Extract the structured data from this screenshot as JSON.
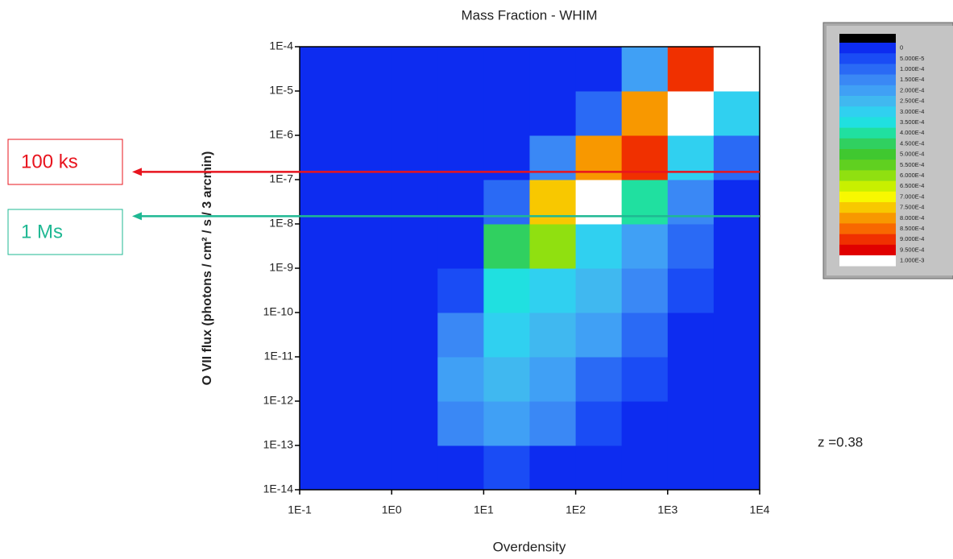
{
  "chart_data": {
    "type": "heatmap",
    "title": "Mass Fraction - WHIM",
    "xlabel": "Overdensity",
    "ylabel": "O VII flux (photons / cm² / s / 3 arcmin)",
    "xscale": "log",
    "yscale": "log",
    "xlim": [
      0.1,
      10000
    ],
    "ylim": [
      1e-14,
      0.0001
    ],
    "xticks": [
      {
        "value": 0.1,
        "label": "1E-1"
      },
      {
        "value": 1,
        "label": "1E0"
      },
      {
        "value": 10,
        "label": "1E1"
      },
      {
        "value": 100,
        "label": "1E2"
      },
      {
        "value": 1000,
        "label": "1E3"
      },
      {
        "value": 10000,
        "label": "1E4"
      }
    ],
    "yticks": [
      {
        "value": 1e-14,
        "label": "1E-14"
      },
      {
        "value": 1e-13,
        "label": "1E-13"
      },
      {
        "value": 1e-12,
        "label": "1E-12"
      },
      {
        "value": 1e-11,
        "label": "1E-11"
      },
      {
        "value": 1e-10,
        "label": "1E-10"
      },
      {
        "value": 1e-09,
        "label": "1E-9"
      },
      {
        "value": 1e-08,
        "label": "1E-8"
      },
      {
        "value": 1e-07,
        "label": "1E-7"
      },
      {
        "value": 1e-06,
        "label": "1E-6"
      },
      {
        "value": 1e-05,
        "label": "1E-5"
      },
      {
        "value": 0.0001,
        "label": "1E-4"
      }
    ],
    "xbins": [
      0.1,
      0.316,
      1,
      3.16,
      10,
      31.6,
      100,
      316,
      1000,
      3160,
      10000
    ],
    "ybins": [
      1e-14,
      1e-13,
      1e-12,
      1e-11,
      1e-10,
      1e-09,
      1e-08,
      1e-07,
      1e-06,
      1e-05,
      0.0001
    ],
    "z": [
      [
        0,
        0,
        0,
        0,
        5e-05,
        0,
        0,
        0,
        0,
        0
      ],
      [
        0,
        0,
        0,
        0.00015,
        0.0002,
        0.00015,
        5e-05,
        0,
        0,
        0
      ],
      [
        0,
        0,
        0,
        0.0002,
        0.00025,
        0.0002,
        0.0001,
        5e-05,
        0,
        0
      ],
      [
        0,
        0,
        0,
        0.00015,
        0.0003,
        0.00025,
        0.0002,
        0.0001,
        0,
        0
      ],
      [
        0,
        0,
        0,
        5e-05,
        0.00035,
        0.0003,
        0.00025,
        0.00015,
        5e-05,
        0
      ],
      [
        0,
        0,
        0,
        0,
        0.00045,
        0.0006,
        0.0003,
        0.0002,
        0.0001,
        0
      ],
      [
        0,
        0,
        0,
        0,
        0.0001,
        0.00075,
        0.001,
        0.0004,
        0.00015,
        0
      ],
      [
        0,
        0,
        0,
        0,
        0,
        0.00015,
        0.0008,
        0.0009,
        0.0003,
        0.0001
      ],
      [
        0,
        0,
        0,
        0,
        0,
        0,
        0.0001,
        0.0008,
        0.001,
        0.0003
      ],
      [
        0,
        0,
        0,
        0,
        0,
        0,
        0,
        0.0002,
        0.0009,
        0.001
      ]
    ],
    "colorbar": {
      "levels": [
        {
          "value": 0,
          "label": "0"
        },
        {
          "value": 5e-05,
          "label": "5.000E-5"
        },
        {
          "value": 0.0001,
          "label": "1.000E-4"
        },
        {
          "value": 0.00015,
          "label": "1.500E-4"
        },
        {
          "value": 0.0002,
          "label": "2.000E-4"
        },
        {
          "value": 0.00025,
          "label": "2.500E-4"
        },
        {
          "value": 0.0003,
          "label": "3.000E-4"
        },
        {
          "value": 0.00035,
          "label": "3.500E-4"
        },
        {
          "value": 0.0004,
          "label": "4.000E-4"
        },
        {
          "value": 0.00045,
          "label": "4.500E-4"
        },
        {
          "value": 0.0005,
          "label": "5.000E-4"
        },
        {
          "value": 0.00055,
          "label": "5.500E-4"
        },
        {
          "value": 0.0006,
          "label": "6.000E-4"
        },
        {
          "value": 0.00065,
          "label": "6.500E-4"
        },
        {
          "value": 0.0007,
          "label": "7.000E-4"
        },
        {
          "value": 0.00075,
          "label": "7.500E-4"
        },
        {
          "value": 0.0008,
          "label": "8.000E-4"
        },
        {
          "value": 0.00085,
          "label": "8.500E-4"
        },
        {
          "value": 0.0009,
          "label": "9.000E-4"
        },
        {
          "value": 0.00095,
          "label": "9.500E-4"
        },
        {
          "value": 0.001,
          "label": "1.000E-3"
        }
      ],
      "colors": [
        "#0d2cf0",
        "#1a4cf5",
        "#2a6af5",
        "#3a88f5",
        "#40a0f5",
        "#40b8f0",
        "#30d0f0",
        "#20e0e0",
        "#20e0a0",
        "#30d060",
        "#40c830",
        "#60d020",
        "#90e010",
        "#c8f000",
        "#f8f800",
        "#f8c800",
        "#f89800",
        "#f86800",
        "#f03000",
        "#e00000",
        "#ffffff"
      ]
    },
    "hlines": [
      {
        "label": "100 ks",
        "value": 1.5e-07,
        "color": "#e8141e"
      },
      {
        "label": "1 Ms",
        "value": 1.5e-08,
        "color": "#1fb893"
      }
    ],
    "annotation": "z =0.38"
  }
}
